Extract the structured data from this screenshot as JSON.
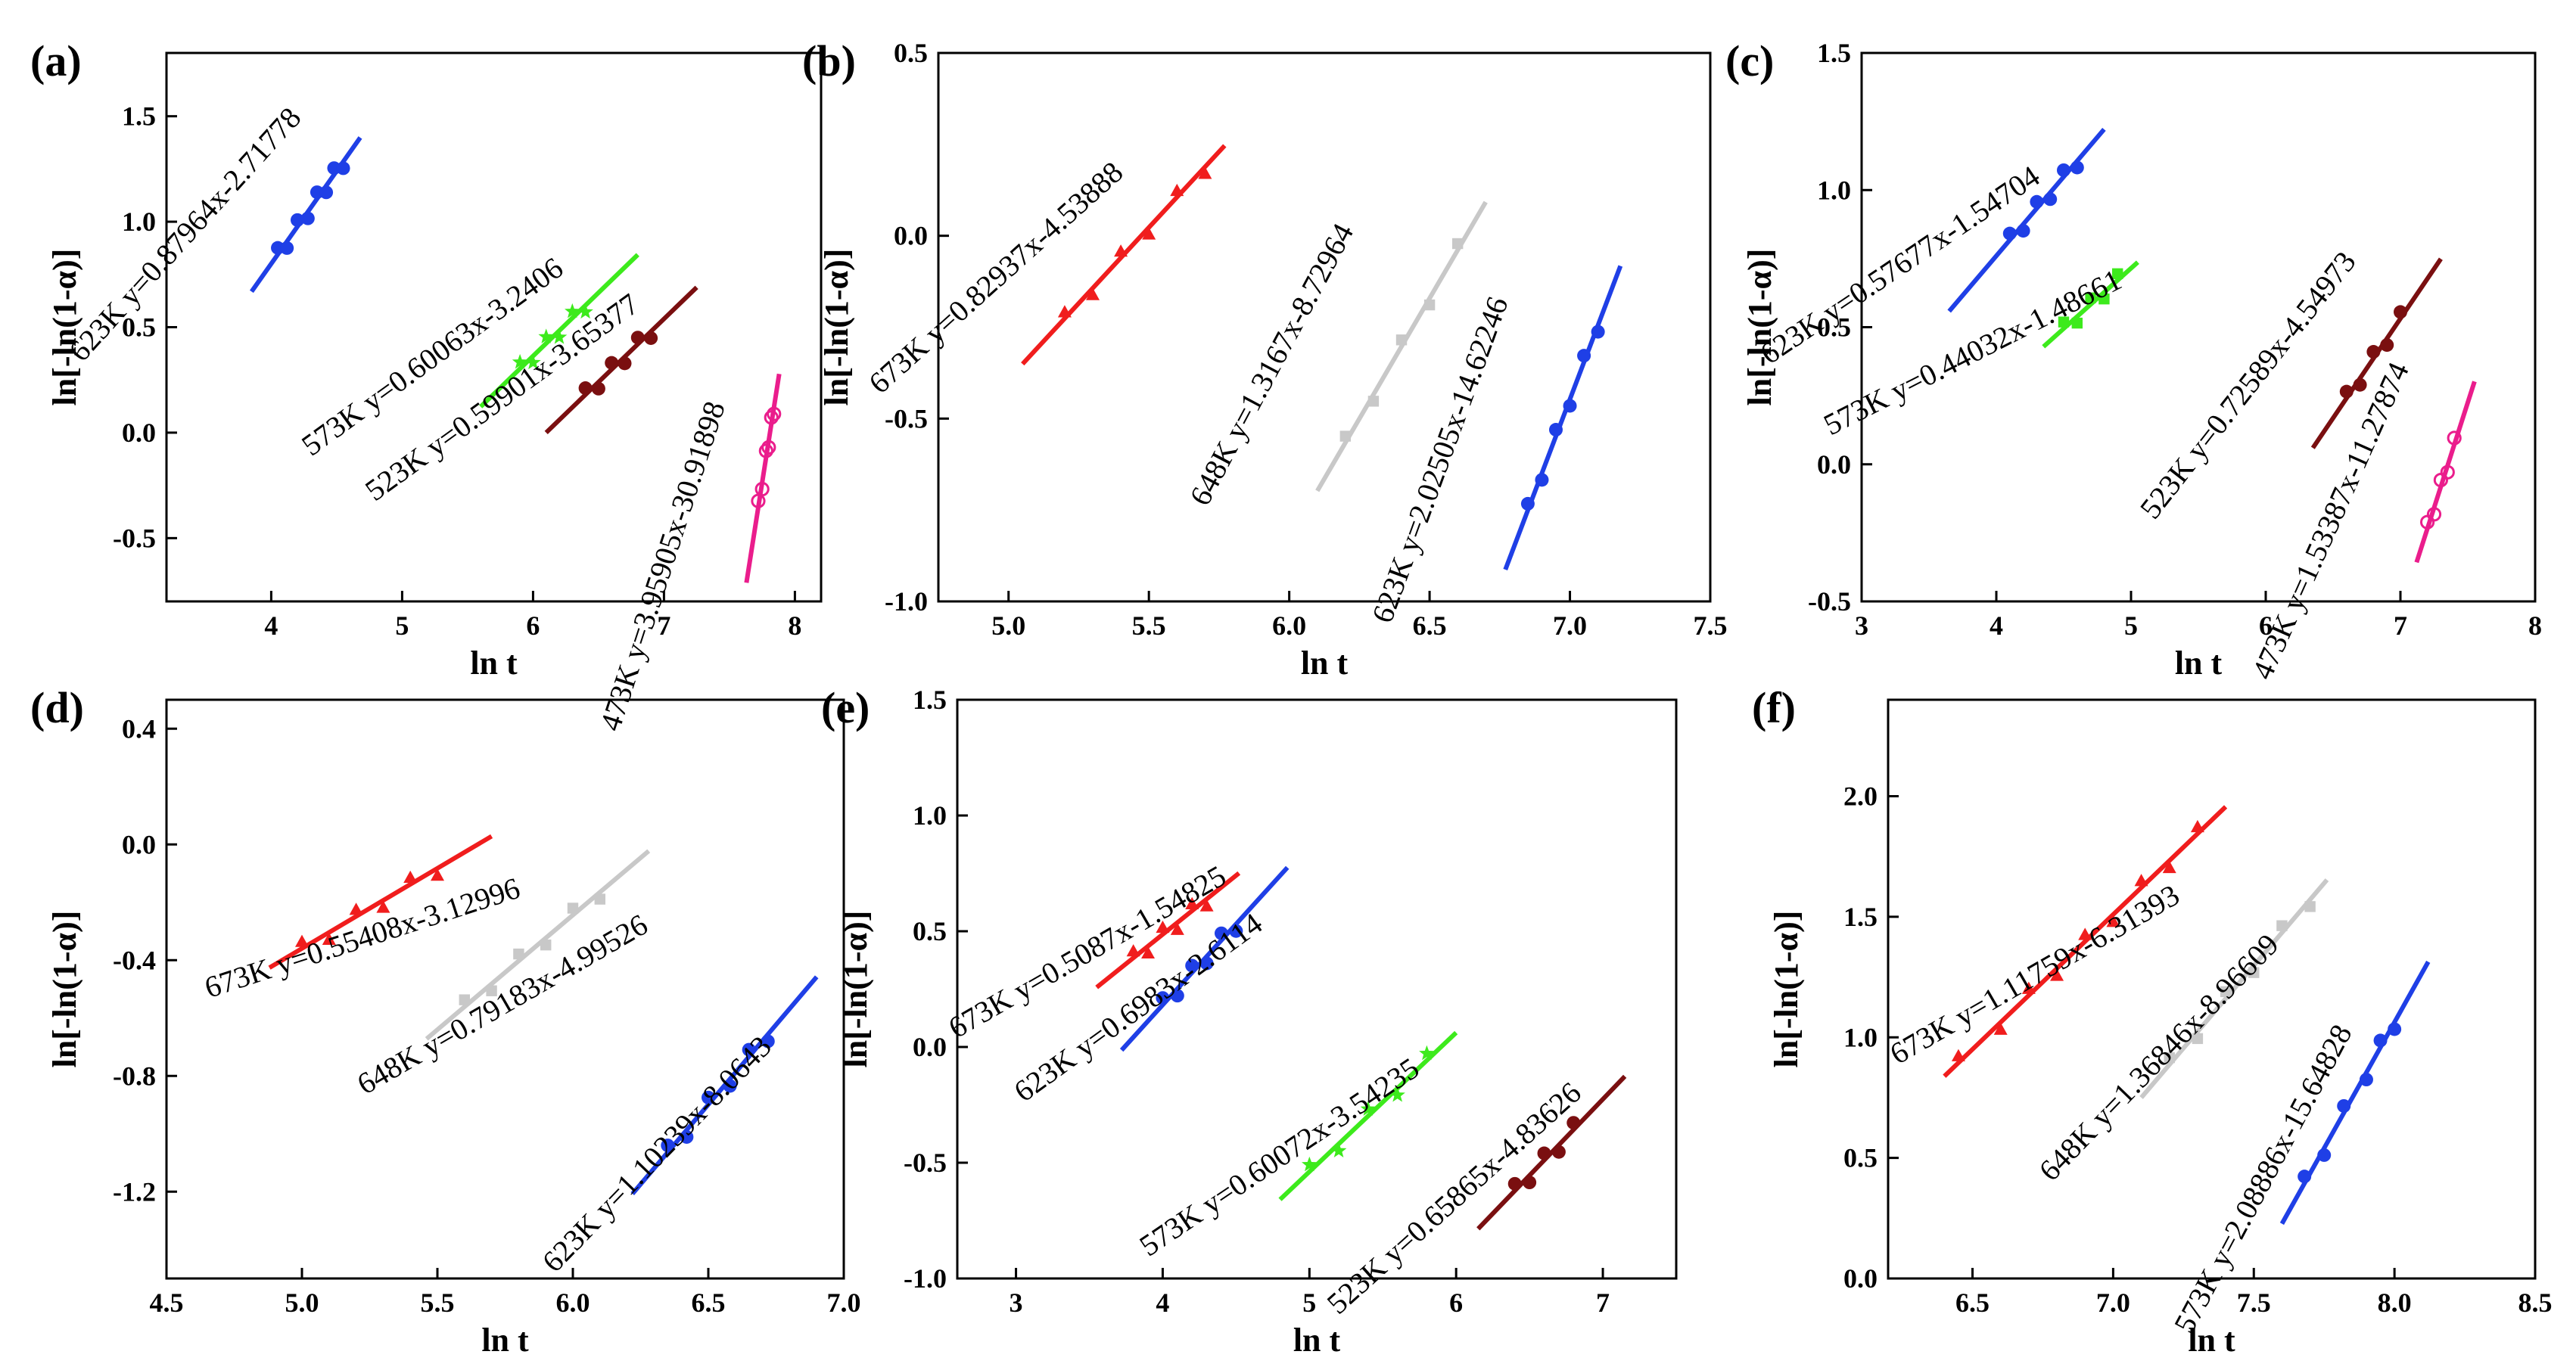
{
  "chart_data": [
    {
      "type": "scatter",
      "panel_label": "(a)",
      "xlabel": "ln t",
      "ylabel": "ln[-ln(1-α)]",
      "xlim": [
        3.2,
        8.2
      ],
      "ylim": [
        -0.8,
        1.8
      ],
      "xticks": [
        "4",
        "5",
        "6",
        "7",
        "8"
      ],
      "yticks": [
        "-0.5",
        "0.0",
        "0.5",
        "1.0",
        "1.5"
      ],
      "series": [
        {
          "name": "623K",
          "label": "623K y=0.87964x-2.71778",
          "slope": 0.87964,
          "intercept": -2.71778,
          "color": "#1f3fe6",
          "marker": "circle",
          "line_x": [
            3.85,
            4.68
          ],
          "points_x": [
            4.05,
            4.12,
            4.2,
            4.28,
            4.35,
            4.42,
            4.48,
            4.55
          ]
        },
        {
          "name": "573K",
          "label": "573K y=0.60063x-3.2406",
          "slope": 0.60063,
          "intercept": -3.2406,
          "color": "#3dea1c",
          "marker": "star",
          "line_x": [
            5.6,
            6.8
          ],
          "points_x": [
            5.9,
            6.0,
            6.1,
            6.2,
            6.3,
            6.4
          ]
        },
        {
          "name": "523K",
          "label": "523K y=0.59901x-3.65377",
          "slope": 0.59901,
          "intercept": -3.65377,
          "color": "#7a0f10",
          "marker": "circle",
          "line_x": [
            6.1,
            7.25
          ],
          "points_x": [
            6.4,
            6.5,
            6.6,
            6.7,
            6.8,
            6.9
          ]
        },
        {
          "name": "473K",
          "label": "473K y=3.95905x-30.91898",
          "slope": 3.95905,
          "intercept": -30.91898,
          "color": "#ea1d8c",
          "marker": "open-circle",
          "line_x": [
            7.63,
            7.88
          ],
          "points_x": [
            7.72,
            7.75,
            7.78,
            7.8,
            7.82,
            7.84
          ]
        }
      ]
    },
    {
      "type": "scatter",
      "panel_label": "(b)",
      "xlabel": "ln t",
      "ylabel": "ln[-ln(1-α)]",
      "xlim": [
        4.75,
        7.5
      ],
      "ylim": [
        -1.0,
        0.5
      ],
      "xticks": [
        "5.0",
        "5.5",
        "6.0",
        "6.5",
        "7.0",
        "7.5"
      ],
      "yticks": [
        "-1.0",
        "-0.5",
        "0.0",
        "0.5"
      ],
      "series": [
        {
          "name": "673K",
          "label": "673K y=0.82937x-4.53888",
          "slope": 0.82937,
          "intercept": -4.53888,
          "color": "#f01d1d",
          "marker": "triangle",
          "line_x": [
            5.05,
            5.77
          ],
          "points_x": [
            5.2,
            5.3,
            5.4,
            5.5,
            5.6,
            5.7
          ]
        },
        {
          "name": "648K",
          "label": "648K y=1.3167x-8.72964",
          "slope": 1.3167,
          "intercept": -8.72964,
          "color": "#c8c8c8",
          "marker": "square",
          "line_x": [
            6.1,
            6.7
          ],
          "points_x": [
            6.2,
            6.3,
            6.4,
            6.5,
            6.6
          ]
        },
        {
          "name": "623K",
          "label": "623K y=2.02505x-14.62246",
          "slope": 2.02505,
          "intercept": -14.62246,
          "color": "#1f3fe6",
          "marker": "circle",
          "line_x": [
            6.77,
            7.18
          ],
          "points_x": [
            6.85,
            6.9,
            6.95,
            7.0,
            7.05,
            7.1
          ]
        }
      ]
    },
    {
      "type": "scatter",
      "panel_label": "(c)",
      "xlabel": "ln t",
      "ylabel": "ln[-ln(1-α)]",
      "xlim": [
        3,
        8
      ],
      "ylim": [
        -0.5,
        1.5
      ],
      "xticks": [
        "3",
        "4",
        "5",
        "6",
        "7",
        "8"
      ],
      "yticks": [
        "-0.5",
        "0.0",
        "0.5",
        "1.0",
        "1.5"
      ],
      "series": [
        {
          "name": "623K",
          "label": "623K y=0.57677x-1.54704",
          "slope": 0.57677,
          "intercept": -1.54704,
          "color": "#1f3fe6",
          "marker": "circle",
          "line_x": [
            3.65,
            4.8
          ],
          "points_x": [
            4.1,
            4.2,
            4.3,
            4.4,
            4.5,
            4.6
          ]
        },
        {
          "name": "573K",
          "label": "573K y=0.44032x-1.48661",
          "slope": 0.44032,
          "intercept": -1.48661,
          "color": "#3dea1c",
          "marker": "square",
          "line_x": [
            4.35,
            5.05
          ],
          "points_x": [
            4.5,
            4.6,
            4.7,
            4.8,
            4.9
          ]
        },
        {
          "name": "523K",
          "label": "523K y=0.72589x-4.54973",
          "slope": 0.72589,
          "intercept": -4.54973,
          "color": "#7a0f10",
          "marker": "circle",
          "line_x": [
            6.35,
            7.3
          ],
          "points_x": [
            6.6,
            6.7,
            6.8,
            6.9,
            7.0
          ]
        },
        {
          "name": "473K",
          "label": "473K y=1.53387x-11.27874",
          "slope": 1.53387,
          "intercept": -11.27874,
          "color": "#ea1d8c",
          "marker": "open-circle",
          "line_x": [
            7.12,
            7.55
          ],
          "points_x": [
            7.2,
            7.25,
            7.3,
            7.35,
            7.4
          ]
        }
      ]
    },
    {
      "type": "scatter",
      "panel_label": "(d)",
      "xlabel": "ln t",
      "ylabel": "ln[-ln(1-α)]",
      "xlim": [
        4.5,
        7.0
      ],
      "ylim": [
        -1.5,
        0.5
      ],
      "xticks": [
        "4.5",
        "5.0",
        "5.5",
        "6.0",
        "6.5",
        "7.0"
      ],
      "yticks": [
        "-1.2",
        "-0.8",
        "-0.4",
        "0.0",
        "0.4"
      ],
      "series": [
        {
          "name": "673K",
          "label": "673K y=0.55408x-3.12996",
          "slope": 0.55408,
          "intercept": -3.12996,
          "color": "#f01d1d",
          "marker": "triangle",
          "line_x": [
            4.88,
            5.7
          ],
          "points_x": [
            5.0,
            5.1,
            5.2,
            5.3,
            5.4,
            5.5
          ]
        },
        {
          "name": "648K",
          "label": "648K y=0.79183x-4.99526",
          "slope": 0.79183,
          "intercept": -4.99526,
          "color": "#c8c8c8",
          "marker": "square",
          "line_x": [
            5.46,
            6.28
          ],
          "points_x": [
            5.6,
            5.7,
            5.8,
            5.9,
            6.0,
            6.1
          ]
        },
        {
          "name": "623K",
          "label": "623K y=1.10239x-8.0643",
          "slope": 1.10239,
          "intercept": -8.0643,
          "color": "#1f3fe6",
          "marker": "circle",
          "line_x": [
            6.22,
            6.9
          ],
          "points_x": [
            6.35,
            6.42,
            6.5,
            6.58,
            6.65,
            6.72
          ]
        }
      ]
    },
    {
      "type": "scatter",
      "panel_label": "(e)",
      "xlabel": "ln t",
      "ylabel": "ln[-ln(1-α)]",
      "xlim": [
        2.6,
        7.5
      ],
      "ylim": [
        -1.0,
        1.5
      ],
      "xticks": [
        "3",
        "4",
        "5",
        "6",
        "7"
      ],
      "yticks": [
        "-1.0",
        "-0.5",
        "0.0",
        "0.5",
        "1.0",
        "1.5"
      ],
      "series": [
        {
          "name": "673K",
          "label": "673K y=0.5087x-1.54825",
          "slope": 0.5087,
          "intercept": -1.54825,
          "color": "#f01d1d",
          "marker": "triangle",
          "line_x": [
            3.55,
            4.52
          ],
          "points_x": [
            3.8,
            3.9,
            4.0,
            4.1,
            4.2,
            4.3
          ]
        },
        {
          "name": "623K",
          "label": "623K y=0.6983x-2.6114",
          "slope": 0.6983,
          "intercept": -2.6114,
          "color": "#1f3fe6",
          "marker": "circle",
          "line_x": [
            3.72,
            4.85
          ],
          "points_x": [
            4.0,
            4.1,
            4.2,
            4.3,
            4.4,
            4.5
          ]
        },
        {
          "name": "573K",
          "label": "573K y=0.60072x-3.54235",
          "slope": 0.60072,
          "intercept": -3.54235,
          "color": "#3dea1c",
          "marker": "star",
          "line_x": [
            4.8,
            6.0
          ],
          "points_x": [
            5.0,
            5.2,
            5.4,
            5.6,
            5.8
          ]
        },
        {
          "name": "523K",
          "label": "523K y=0.65865x-4.83626",
          "slope": 0.65865,
          "intercept": -4.83626,
          "color": "#7a0f10",
          "marker": "circle",
          "line_x": [
            6.15,
            7.15
          ],
          "points_x": [
            6.4,
            6.5,
            6.6,
            6.7,
            6.8
          ]
        }
      ]
    },
    {
      "type": "scatter",
      "panel_label": "(f)",
      "xlabel": "ln t",
      "ylabel": "ln[-ln(1-α)]",
      "xlim": [
        6.2,
        8.5
      ],
      "ylim": [
        0.0,
        2.4
      ],
      "xticks": [
        "6.5",
        "7.0",
        "7.5",
        "8.0",
        "8.5"
      ],
      "yticks": [
        "0.0",
        "0.5",
        "1.0",
        "1.5",
        "2.0"
      ],
      "series": [
        {
          "name": "673K",
          "label": "673K y=1.11759x-6.31393",
          "slope": 1.11759,
          "intercept": -6.31393,
          "color": "#f01d1d",
          "marker": "triangle",
          "line_x": [
            6.4,
            7.4
          ],
          "points_x": [
            6.45,
            6.6,
            6.7,
            6.8,
            6.9,
            7.0,
            7.1,
            7.2,
            7.3
          ]
        },
        {
          "name": "648K",
          "label": "648K y=1.36846x-8.96609",
          "slope": 1.36846,
          "intercept": -8.96609,
          "color": "#c8c8c8",
          "marker": "square",
          "line_x": [
            7.1,
            7.76
          ],
          "points_x": [
            7.2,
            7.3,
            7.4,
            7.5,
            7.6,
            7.7
          ]
        },
        {
          "name": "573K",
          "label": "573K y=2.08886x-15.64828",
          "slope": 2.08886,
          "intercept": -15.64828,
          "color": "#1f3fe6",
          "marker": "circle",
          "line_x": [
            7.6,
            8.12
          ],
          "points_x": [
            7.68,
            7.75,
            7.82,
            7.9,
            7.95,
            8.0
          ]
        }
      ]
    }
  ]
}
